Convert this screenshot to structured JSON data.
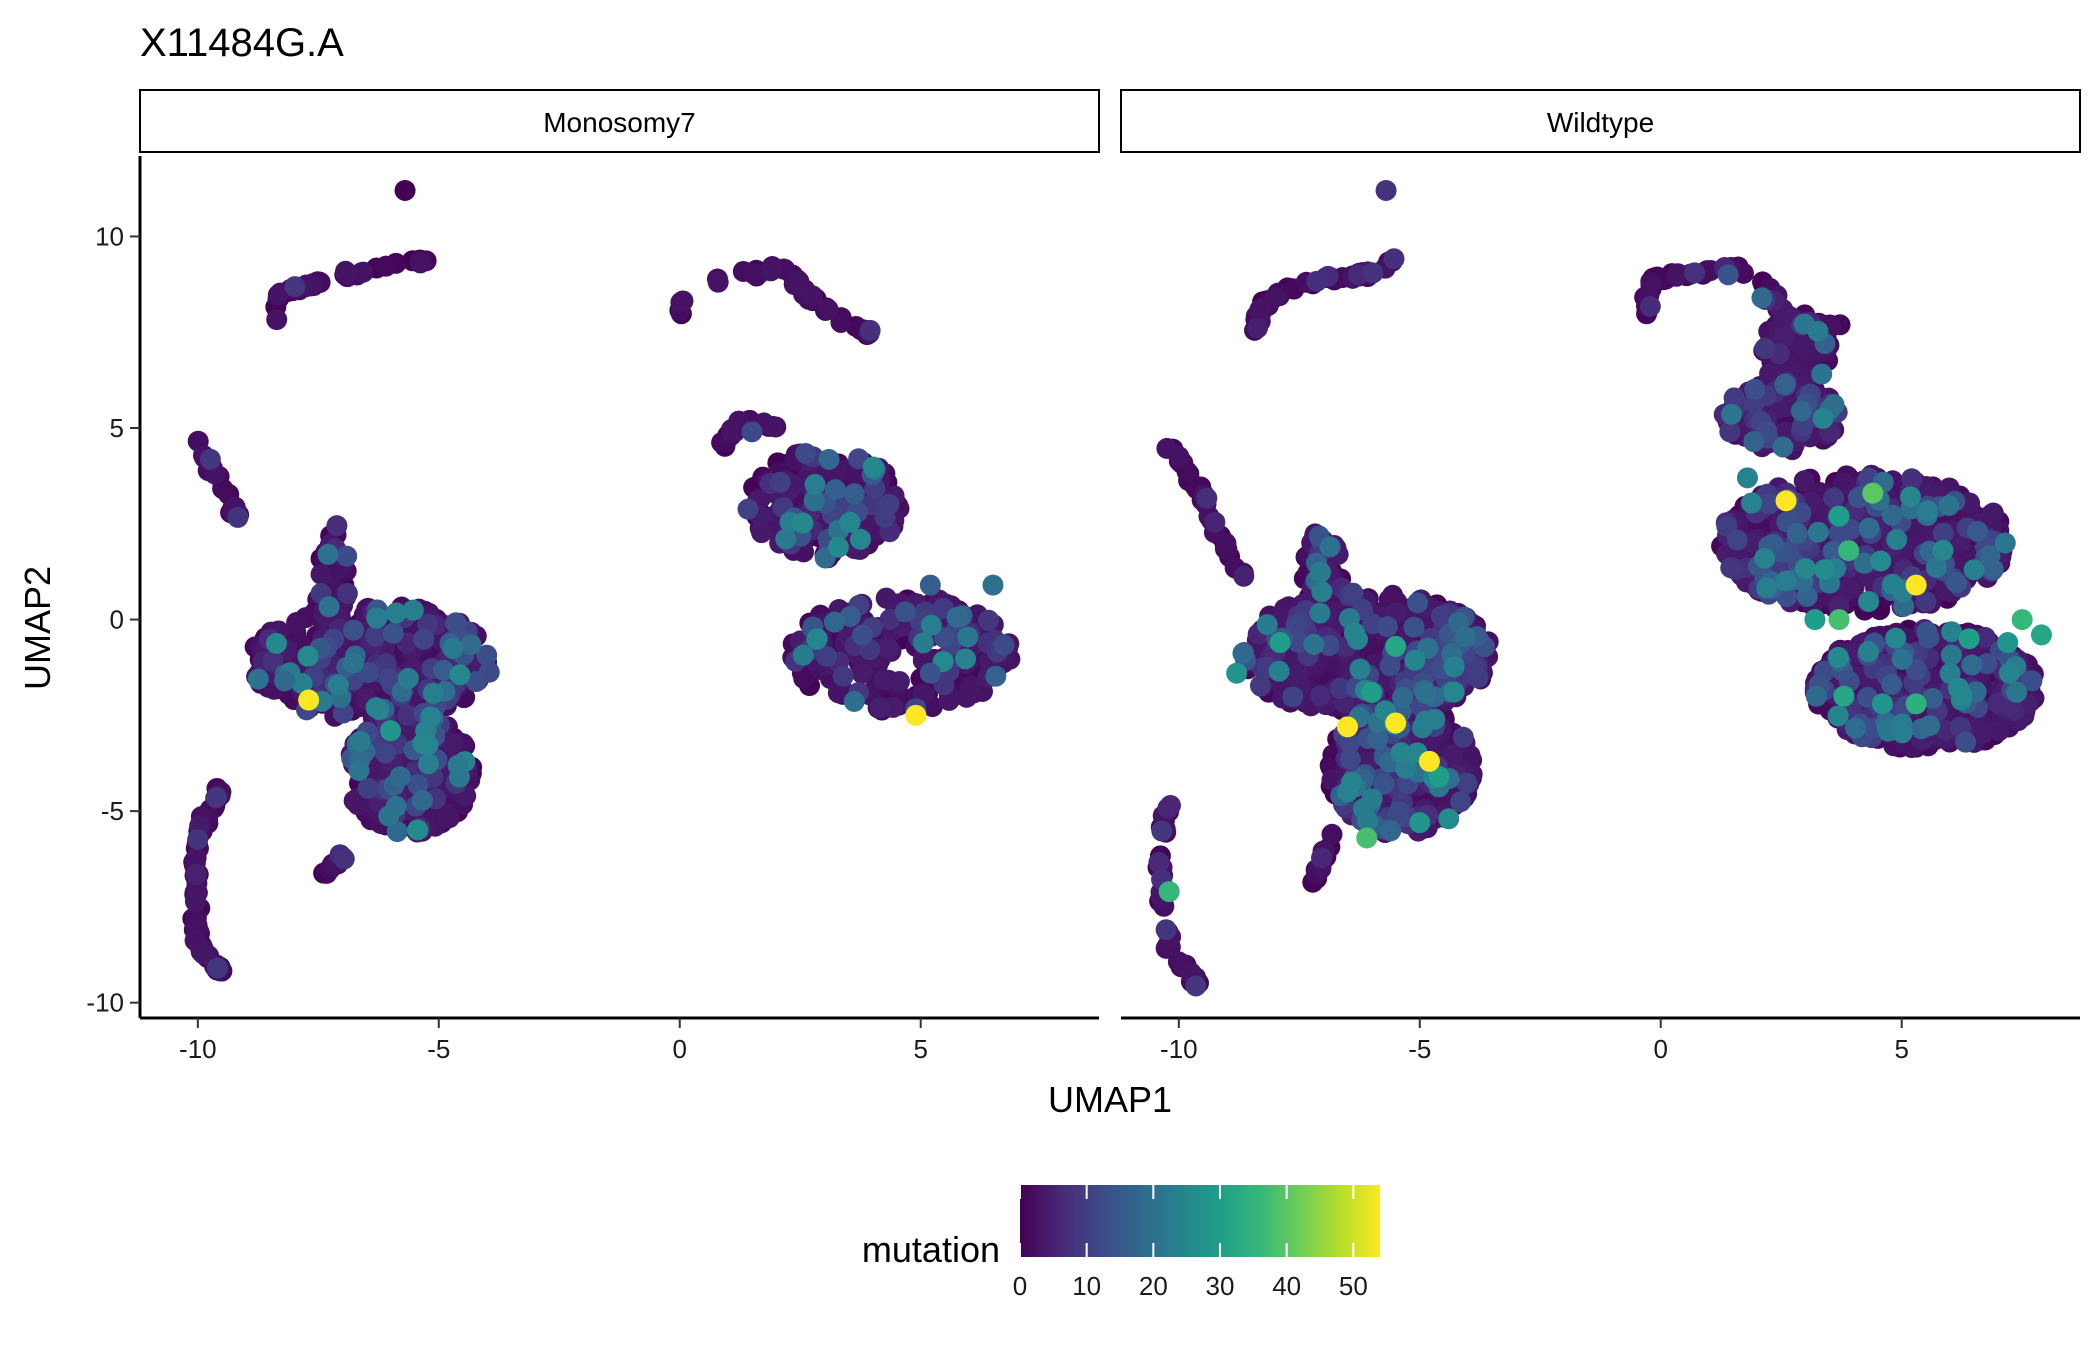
{
  "chart_data": {
    "type": "scatter",
    "title": "X11484G.A",
    "xlabel": "UMAP1",
    "ylabel": "UMAP2",
    "xlim": [
      -11.2,
      8.7
    ],
    "ylim": [
      -10.4,
      12.1
    ],
    "x_ticks": [
      -10,
      -5,
      0,
      5
    ],
    "y_ticks": [
      -10,
      -5,
      0,
      5,
      10
    ],
    "x_tick_labels": [
      "-10",
      "-5",
      "0",
      "5"
    ],
    "y_tick_labels": [
      "-10",
      "-5",
      "0",
      "5",
      "10"
    ],
    "facets": [
      "Monosomy7",
      "Wildtype"
    ],
    "color_scale": {
      "name": "mutation",
      "palette": "viridis",
      "min": 0,
      "max": 54,
      "ticks": [
        0,
        10,
        20,
        30,
        40,
        50
      ],
      "tick_labels": [
        "0",
        "10",
        "20",
        "30",
        "40",
        "50"
      ],
      "colors": [
        "#440154",
        "#482878",
        "#3e4989",
        "#31688e",
        "#26828e",
        "#1f9e89",
        "#35b779",
        "#6ece58",
        "#b5de2b",
        "#fde725"
      ]
    },
    "clusters": {
      "Monosomy7": [
        {
          "cx": -6.4,
          "cy": -1.1,
          "rx": 2.5,
          "ry": 1.5,
          "n": 420
        },
        {
          "cx": -5.6,
          "cy": -4.0,
          "rx": 1.3,
          "ry": 1.6,
          "n": 320
        },
        {
          "cx": -7.2,
          "cy": 1.0,
          "rx": 0.35,
          "ry": 1.6,
          "n": 55
        },
        {
          "cx": 3.0,
          "cy": 3.0,
          "rx": 1.6,
          "ry": 1.4,
          "n": 220
        },
        {
          "cx": 4.6,
          "cy": -0.9,
          "rx": 2.3,
          "ry": 1.5,
          "n": 260
        }
      ],
      "Wildtype": [
        {
          "cx": -6.1,
          "cy": -0.9,
          "rx": 2.6,
          "ry": 1.6,
          "n": 520
        },
        {
          "cx": -5.4,
          "cy": -3.9,
          "rx": 1.5,
          "ry": 1.7,
          "n": 380
        },
        {
          "cx": -7.0,
          "cy": 1.2,
          "rx": 0.4,
          "ry": 1.2,
          "n": 55
        },
        {
          "cx": 4.2,
          "cy": 2.0,
          "rx": 3.0,
          "ry": 1.8,
          "n": 700
        },
        {
          "cx": 5.5,
          "cy": -1.8,
          "rx": 2.3,
          "ry": 1.6,
          "n": 600
        },
        {
          "cx": 2.5,
          "cy": 5.3,
          "rx": 1.2,
          "ry": 0.9,
          "n": 160
        },
        {
          "cx": 2.8,
          "cy": 7.0,
          "rx": 0.7,
          "ry": 1.0,
          "n": 90
        }
      ]
    },
    "paths": {
      "Monosomy7": [
        {
          "points": [
            [
              -8.4,
              7.7
            ],
            [
              -8.3,
              8.5
            ],
            [
              -7.8,
              8.7
            ],
            [
              -7.5,
              8.8
            ]
          ],
          "n": 25
        },
        {
          "points": [
            [
              -7.0,
              9.0
            ],
            [
              -6.6,
              9.0
            ],
            [
              -5.5,
              9.4
            ],
            [
              -5.2,
              9.3
            ]
          ],
          "n": 16
        },
        {
          "points": [
            [
              0.0,
              8.0
            ],
            [
              0.2,
              8.8
            ],
            [
              1.3,
              9.0
            ],
            [
              2.2,
              9.2
            ],
            [
              2.7,
              8.4
            ],
            [
              3.6,
              7.6
            ],
            [
              4.0,
              7.5
            ]
          ],
          "n": 45
        },
        {
          "points": [
            [
              -10.0,
              4.6
            ],
            [
              -9.5,
              3.5
            ],
            [
              -9.2,
              2.7
            ]
          ],
          "n": 20
        },
        {
          "points": [
            [
              -9.5,
              -4.4
            ],
            [
              -10.0,
              -5.5
            ],
            [
              -10.1,
              -7.0
            ],
            [
              -10.0,
              -8.5
            ],
            [
              -9.5,
              -9.2
            ]
          ],
          "n": 75
        },
        {
          "points": [
            [
              -6.8,
              -5.8
            ],
            [
              -7.5,
              -7.0
            ]
          ],
          "n": 12
        },
        {
          "points": [
            [
              0.7,
              4.3
            ],
            [
              1.3,
              5.2
            ],
            [
              2.2,
              5.0
            ]
          ],
          "n": 18
        }
      ],
      "Wildtype": [
        {
          "points": [
            [
              -8.4,
              7.3
            ],
            [
              -8.3,
              8.2
            ],
            [
              -7.8,
              8.6
            ],
            [
              -7.0,
              8.9
            ],
            [
              -6.0,
              9.0
            ],
            [
              -5.4,
              9.5
            ]
          ],
          "n": 40
        },
        {
          "points": [
            [
              -10.2,
              4.5
            ],
            [
              -9.6,
              3.5
            ],
            [
              -9.2,
              2.3
            ],
            [
              -8.6,
              1.0
            ]
          ],
          "n": 35
        },
        {
          "points": [
            [
              -10.2,
              -4.8
            ],
            [
              -10.4,
              -6.0
            ],
            [
              -10.4,
              -7.0
            ],
            [
              -10.2,
              -8.6
            ],
            [
              -9.6,
              -9.5
            ]
          ],
          "n": 40
        },
        {
          "points": [
            [
              -6.8,
              -5.6
            ],
            [
              -7.2,
              -6.9
            ]
          ],
          "n": 14
        },
        {
          "points": [
            [
              -0.3,
              8.0
            ],
            [
              -0.2,
              8.9
            ],
            [
              0.6,
              9.0
            ],
            [
              1.5,
              9.2
            ],
            [
              2.2,
              8.8
            ],
            [
              2.6,
              7.9
            ]
          ],
          "n": 35
        },
        {
          "points": [
            [
              2.2,
              8.4
            ],
            [
              2.8,
              7.8
            ],
            [
              3.7,
              7.6
            ]
          ],
          "n": 25
        }
      ]
    },
    "singles": {
      "Monosomy7": [
        {
          "x": -5.7,
          "y": 11.2,
          "v": 0
        },
        {
          "x": 2.2,
          "y": 2.1,
          "v": 22
        },
        {
          "x": 4.9,
          "y": -2.5,
          "v": 54
        },
        {
          "x": 6.5,
          "y": 0.9,
          "v": 20
        },
        {
          "x": -7.7,
          "y": -2.1,
          "v": 54
        },
        {
          "x": -6.0,
          "y": -2.9,
          "v": 28
        },
        {
          "x": -4.6,
          "y": -3.8,
          "v": 22
        },
        {
          "x": -8.2,
          "y": -1.6,
          "v": 18
        },
        {
          "x": -6.3,
          "y": -2.3,
          "v": 24
        },
        {
          "x": -7.3,
          "y": 1.7,
          "v": 20
        },
        {
          "x": 1.5,
          "y": 4.9,
          "v": 12
        },
        {
          "x": 5.2,
          "y": 0.9,
          "v": 16
        },
        {
          "x": 5.2,
          "y": -1.4,
          "v": 14
        },
        {
          "x": -5.8,
          "y": -4.1,
          "v": 18
        }
      ],
      "Wildtype": [
        {
          "x": -5.7,
          "y": 11.2,
          "v": 8
        },
        {
          "x": -6.5,
          "y": -2.8,
          "v": 54
        },
        {
          "x": -5.5,
          "y": -2.7,
          "v": 54
        },
        {
          "x": -4.8,
          "y": -3.7,
          "v": 54
        },
        {
          "x": 2.6,
          "y": 3.1,
          "v": 54
        },
        {
          "x": 5.3,
          "y": 0.9,
          "v": 54
        },
        {
          "x": -10.2,
          "y": -7.1,
          "v": 36
        },
        {
          "x": -6.1,
          "y": -5.7,
          "v": 38
        },
        {
          "x": -5.5,
          "y": -0.7,
          "v": 32
        },
        {
          "x": -6.0,
          "y": -1.9,
          "v": 30
        },
        {
          "x": -8.8,
          "y": -1.4,
          "v": 28
        },
        {
          "x": -7.9,
          "y": -0.6,
          "v": 30
        },
        {
          "x": -4.6,
          "y": -4.1,
          "v": 30
        },
        {
          "x": -5.0,
          "y": -5.3,
          "v": 28
        },
        {
          "x": -4.4,
          "y": -5.2,
          "v": 26
        },
        {
          "x": -6.5,
          "y": -4.5,
          "v": 24
        },
        {
          "x": 4.4,
          "y": 3.3,
          "v": 40
        },
        {
          "x": 3.9,
          "y": 1.8,
          "v": 36
        },
        {
          "x": 7.5,
          "y": 0.0,
          "v": 36
        },
        {
          "x": 7.9,
          "y": -0.4,
          "v": 32
        },
        {
          "x": 3.7,
          "y": 0.0,
          "v": 38
        },
        {
          "x": 3.2,
          "y": 0.0,
          "v": 30
        },
        {
          "x": 3.8,
          "y": -2.0,
          "v": 32
        },
        {
          "x": 5.3,
          "y": -2.2,
          "v": 34
        },
        {
          "x": 4.6,
          "y": -2.2,
          "v": 28
        },
        {
          "x": 3.7,
          "y": 2.7,
          "v": 30
        },
        {
          "x": 7.2,
          "y": -0.6,
          "v": 28
        },
        {
          "x": 1.8,
          "y": 3.7,
          "v": 24
        },
        {
          "x": 2.1,
          "y": 8.4,
          "v": 18
        },
        {
          "x": 1.4,
          "y": 9.0,
          "v": 14
        },
        {
          "x": 6.4,
          "y": -0.5,
          "v": 30
        },
        {
          "x": 3.4,
          "y": 1.3,
          "v": 26
        }
      ]
    }
  }
}
